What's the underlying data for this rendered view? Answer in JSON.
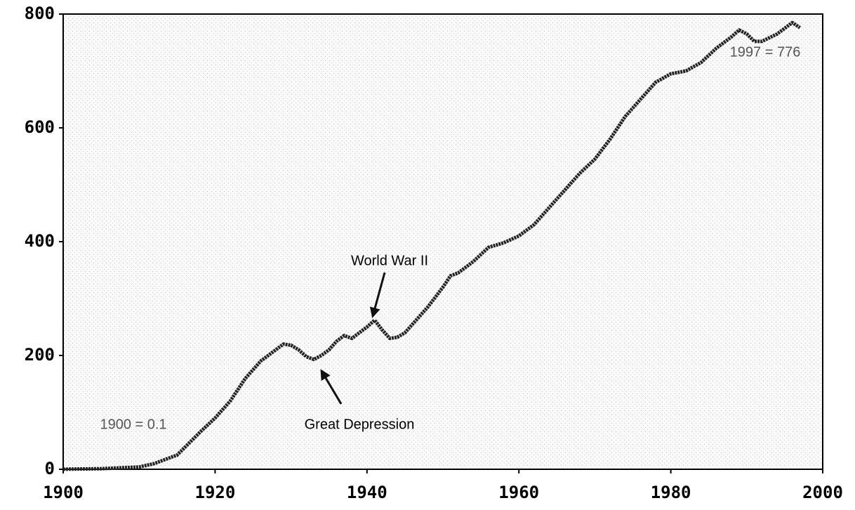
{
  "chart_data": {
    "type": "line",
    "x": [
      1900,
      1905,
      1910,
      1912,
      1915,
      1918,
      1920,
      1922,
      1924,
      1926,
      1928,
      1929,
      1930,
      1931,
      1932,
      1933,
      1934,
      1935,
      1936,
      1937,
      1938,
      1939,
      1940,
      1941,
      1942,
      1943,
      1944,
      1945,
      1946,
      1948,
      1950,
      1951,
      1952,
      1954,
      1956,
      1958,
      1960,
      1962,
      1964,
      1966,
      1968,
      1970,
      1972,
      1974,
      1976,
      1978,
      1980,
      1982,
      1984,
      1986,
      1988,
      1989,
      1990,
      1991,
      1992,
      1994,
      1996,
      1997
    ],
    "series": [
      {
        "color": "#222222",
        "values": [
          0.1,
          1,
          4,
          10,
          25,
          65,
          90,
          120,
          160,
          190,
          210,
          220,
          218,
          210,
          198,
          193,
          200,
          210,
          225,
          235,
          230,
          240,
          250,
          262,
          245,
          230,
          232,
          240,
          255,
          285,
          320,
          340,
          345,
          365,
          390,
          398,
          410,
          430,
          460,
          490,
          520,
          545,
          580,
          620,
          650,
          680,
          695,
          700,
          715,
          740,
          760,
          772,
          765,
          752,
          752,
          765,
          785,
          776
        ]
      }
    ],
    "xlim": [
      1900,
      2000
    ],
    "xticks": [
      1900,
      1920,
      1940,
      1960,
      1980,
      2000
    ],
    "ylim": [
      0,
      800
    ],
    "yticks": [
      0,
      200,
      400,
      600,
      800
    ],
    "annotations": [
      "1997 = 776",
      "1900 = 0.1",
      "World War II",
      "Great Depression"
    ]
  }
}
